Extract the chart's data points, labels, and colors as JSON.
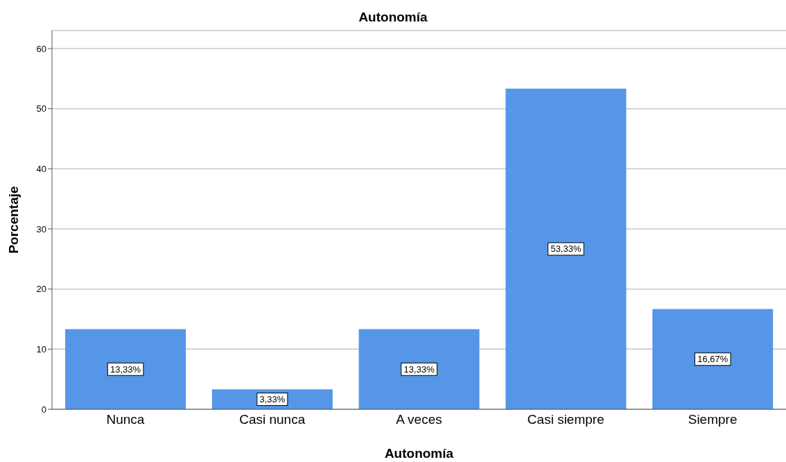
{
  "chart_data": {
    "type": "bar",
    "title": "Autonomía",
    "xlabel": "Autonomía",
    "ylabel": "Porcentaje",
    "categories": [
      "Nunca",
      "Casi nunca",
      "A veces",
      "Casi siempre",
      "Siempre"
    ],
    "values": [
      13.33,
      3.33,
      13.33,
      53.33,
      16.67
    ],
    "value_labels": [
      "13,33%",
      "3,33%",
      "13,33%",
      "53,33%",
      "16,67%"
    ],
    "color": "#5596e6",
    "ylim": [
      0,
      63
    ],
    "yticks": [
      0,
      10,
      20,
      30,
      40,
      50,
      60
    ],
    "grid": "y"
  }
}
